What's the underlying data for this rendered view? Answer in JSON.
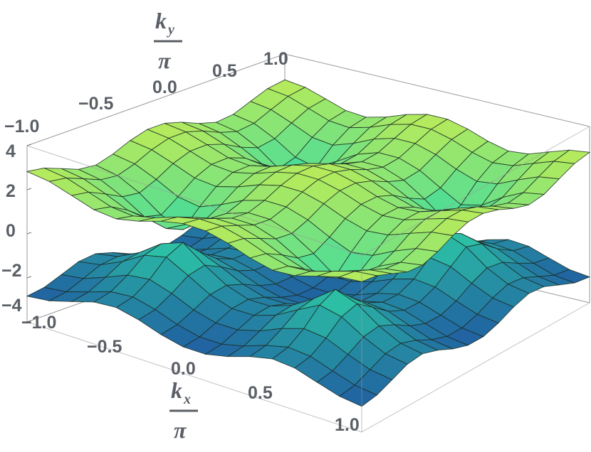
{
  "chart_data": {
    "type": "surface3d",
    "description_free": true,
    "x_axis": {
      "label_top": "k",
      "label_sub": "x",
      "label_den": "π",
      "range": [
        -1.0,
        1.0
      ],
      "ticks": [
        "−1.0",
        "−0.5",
        "0.0",
        "0.5",
        "1.0"
      ]
    },
    "y_axis": {
      "label_top": "k",
      "label_sub": "y",
      "label_den": "π",
      "range": [
        -1.0,
        1.0
      ],
      "ticks": [
        "−1.0",
        "−0.5",
        "0.0",
        "0.5",
        "1.0"
      ]
    },
    "z_axis": {
      "range": [
        -4,
        4
      ],
      "ticks": [
        "4",
        "2",
        "0",
        "−2",
        "−4"
      ]
    },
    "grid_divisions": 15,
    "surfaces": [
      {
        "name": "upper band",
        "formula": "+2*sqrt(cos(pi*kx)^2 + cos(pi*ky)^2)"
      },
      {
        "name": "lower band",
        "formula": "-2*sqrt(cos(pi*kx)^2 + cos(pi*ky)^2)"
      }
    ],
    "colors": {
      "low": "#1a2e9e",
      "mid": "#2fd9a8",
      "high": "#f2f23a",
      "mesh": "#1c2a22",
      "box": "#9a9a9a"
    }
  }
}
